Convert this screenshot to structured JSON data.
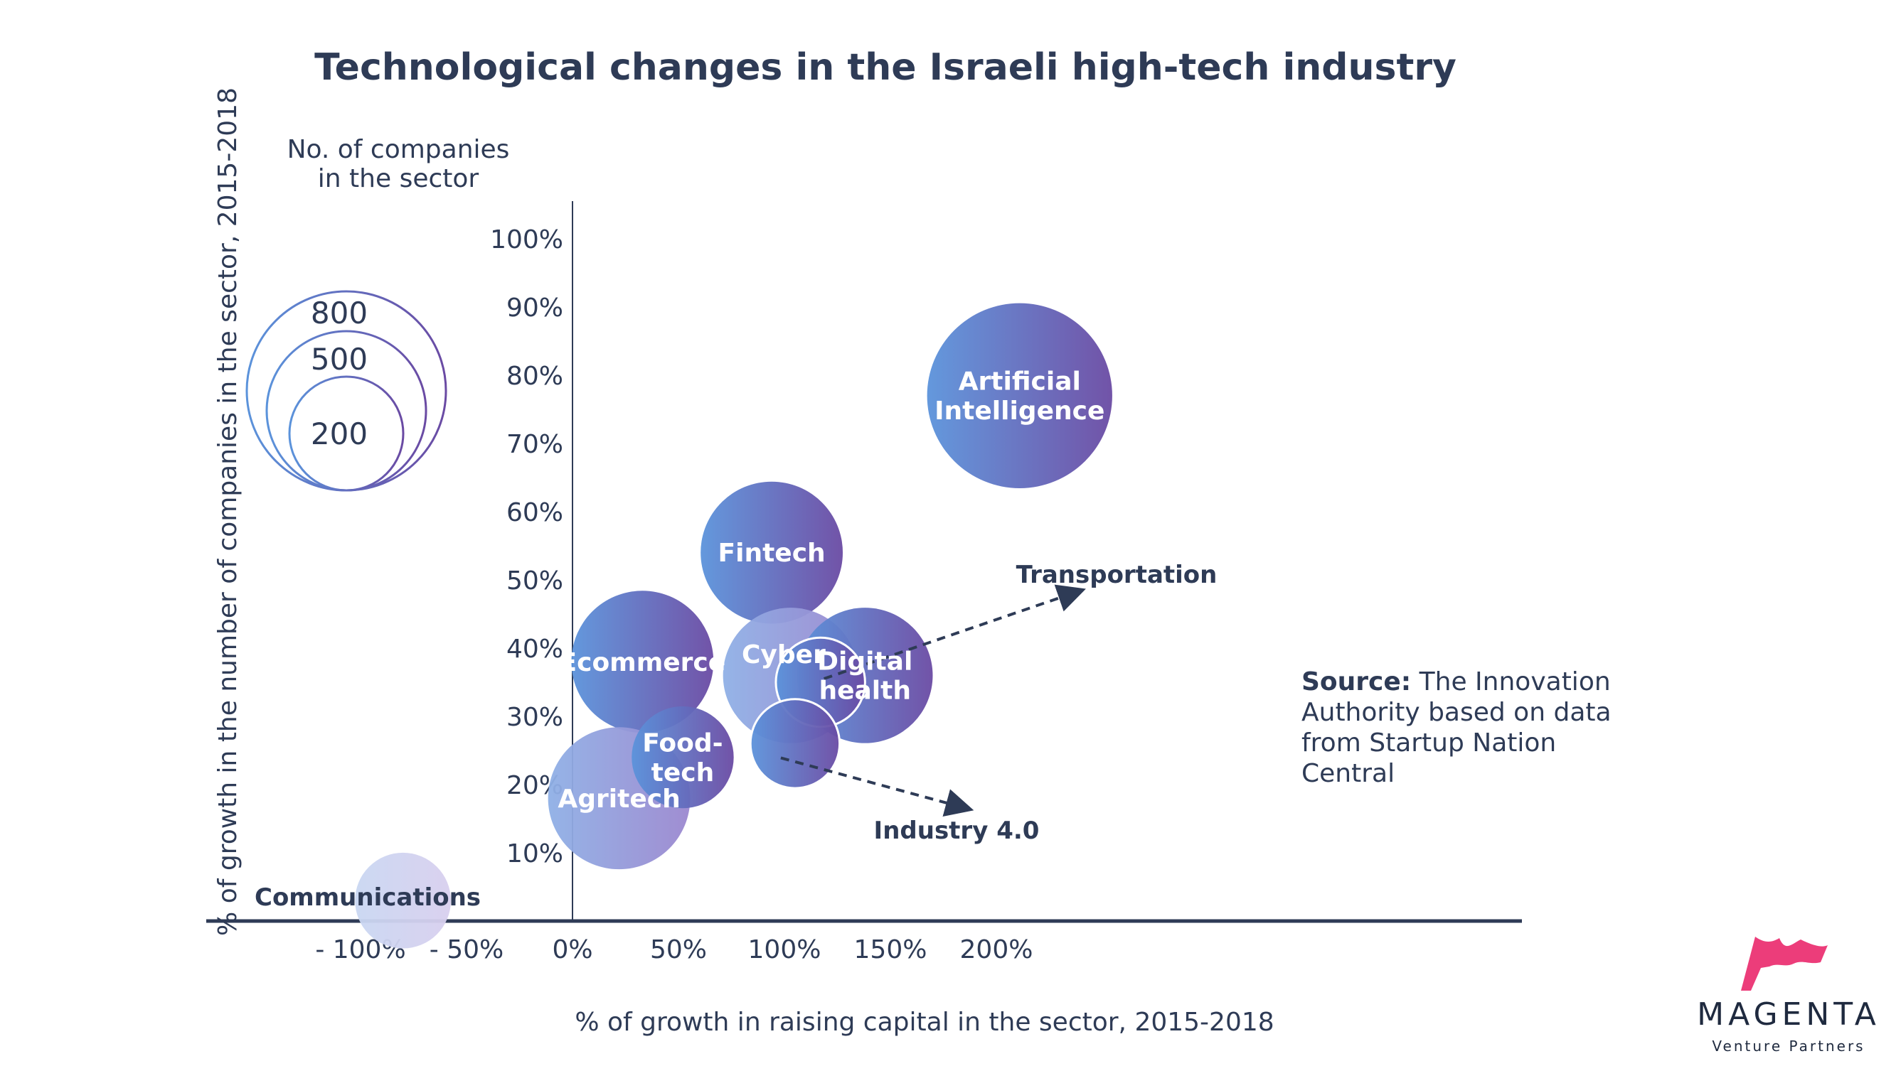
{
  "chart_data": {
    "type": "bubble",
    "title": "Technological changes in the Israeli high-tech industry",
    "xlabel": "% of growth in raising capital in the sector, 2015-2018",
    "ylabel": "% of growth in the number of companies in the sector, 2015-2018",
    "x_ticks": [
      "- 100%",
      "- 50%",
      "0%",
      "50%",
      "100%",
      "150%",
      "200%"
    ],
    "y_ticks": [
      "10%",
      "20%",
      "30%",
      "40%",
      "50%",
      "60%",
      "70%",
      "80%",
      "90%",
      "100%"
    ],
    "size_legend": {
      "title_lines": [
        "No. of companies",
        "in the sector"
      ],
      "sizes": [
        800,
        500,
        200
      ]
    },
    "points": [
      {
        "label": [
          "Artificial",
          "Intelligence"
        ],
        "x": 211,
        "y": 77,
        "size": 560
      },
      {
        "label": [
          "Fintech"
        ],
        "x": 94,
        "y": 54,
        "size": 330
      },
      {
        "label": [
          "Ecommerce"
        ],
        "x": 33,
        "y": 38,
        "size": 330
      },
      {
        "label": [
          "Agritech"
        ],
        "x": 22,
        "y": 18,
        "size": 330
      },
      {
        "label": [
          "Food-",
          "tech"
        ],
        "x": 52,
        "y": 24,
        "size": 170
      },
      {
        "label": [
          "Cyber"
        ],
        "x": 103,
        "y": 36,
        "size": 300
      },
      {
        "label": [
          "Digital",
          "health"
        ],
        "x": 138,
        "y": 36,
        "size": 300
      },
      {
        "label": [
          "Transportation"
        ],
        "x": 117,
        "y": 35,
        "size": 130
      },
      {
        "label": [
          "Industry 4.0"
        ],
        "x": 105,
        "y": 26,
        "size": 130
      },
      {
        "label": [
          "Communications"
        ],
        "x": -80,
        "y": 3,
        "size": 150
      }
    ]
  },
  "source": {
    "bold": "Source:",
    "text": "The Innovation Authority based on data from Startup Nation Central"
  },
  "brand": {
    "name": "MAGENTA",
    "sub": "Venture Partners"
  },
  "colors": {
    "text": "#2e3b56",
    "bubble_light": "#5b86d6",
    "bubble_dark": "#6a4aa3",
    "brand": "#ec3d7a"
  }
}
